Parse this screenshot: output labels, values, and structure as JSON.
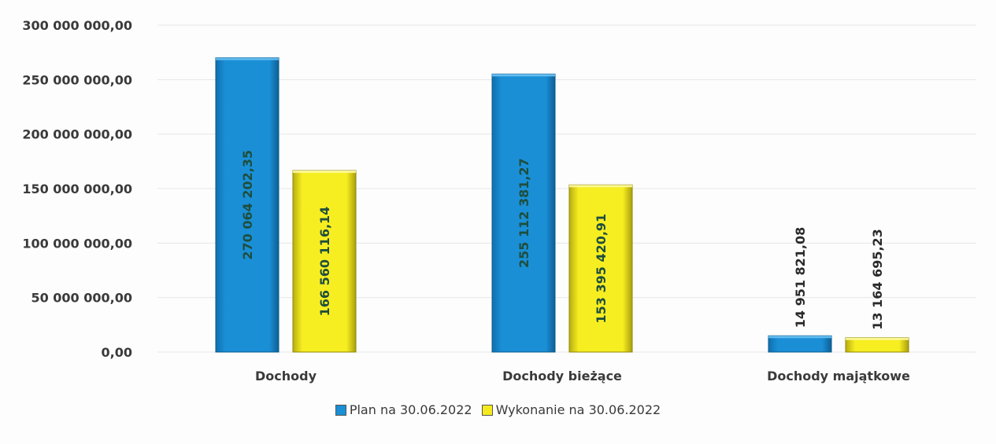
{
  "chart_data": {
    "type": "bar",
    "categories": [
      "Dochody",
      "Dochody bieżące",
      "Dochody majątkowe"
    ],
    "series": [
      {
        "name": "Plan na 30.06.2022",
        "values": [
          270064202.35,
          255112381.27,
          14951821.08
        ],
        "labels": [
          "270 064 202,35",
          "255 112 381,27",
          "14 951 821,08"
        ],
        "color": "#1a8fd6"
      },
      {
        "name": "Wykonanie na 30.06.2022",
        "values": [
          166560116.14,
          153395420.91,
          13164695.23
        ],
        "labels": [
          "166 560 116,14",
          "153 395 420,91",
          "13 164 695,23"
        ],
        "color": "#f5ea1e"
      }
    ],
    "ylim": [
      0,
      300000000
    ],
    "yticks": [
      "0,00",
      "50 000 000,00",
      "100 000 000,00",
      "150 000 000,00",
      "200 000 000,00",
      "250 000 000,00",
      "300 000 000,00"
    ],
    "grid": true,
    "legend_position": "bottom"
  }
}
